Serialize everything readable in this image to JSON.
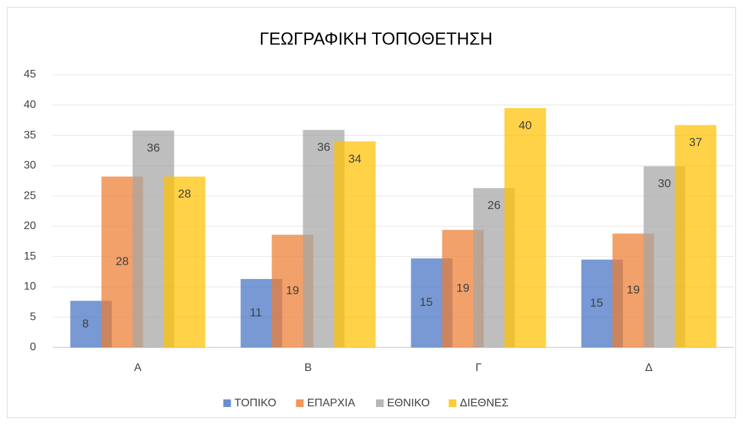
{
  "chart_data": {
    "type": "bar",
    "title": "ΓΕΩΓΡΑΦΙΚΗ ΤΟΠΟΘΕΤΗΣΗ",
    "categories": [
      "A",
      "B",
      "Γ",
      "Δ"
    ],
    "series": [
      {
        "name": "ΤΟΠΙΚΟ",
        "color": "#4472c4",
        "values": [
          7.7,
          11.3,
          14.7,
          14.5
        ],
        "value_labels": [
          "8",
          "11",
          "15",
          "15"
        ]
      },
      {
        "name": "ΕΠΑΡΧΙΑ",
        "color": "#ed7d31",
        "values": [
          28.2,
          18.6,
          19.4,
          18.8
        ],
        "value_labels": [
          "28",
          "19",
          "19",
          "19"
        ]
      },
      {
        "name": "ΕΘΝΙΚΟ",
        "color": "#a5a5a5",
        "values": [
          35.8,
          35.9,
          26.3,
          29.9
        ],
        "value_labels": [
          "36",
          "36",
          "26",
          "30"
        ]
      },
      {
        "name": "ΔΙΕΘΝΕΣ",
        "color": "#ffc000",
        "values": [
          28.2,
          34,
          39.5,
          36.7
        ],
        "value_labels": [
          "28",
          "34",
          "40",
          "37"
        ]
      }
    ],
    "ylim": [
      0,
      45
    ],
    "yticks": [
      0,
      5,
      10,
      15,
      20,
      25,
      30,
      35,
      40,
      45
    ],
    "grid": true,
    "legend": "bottom"
  }
}
